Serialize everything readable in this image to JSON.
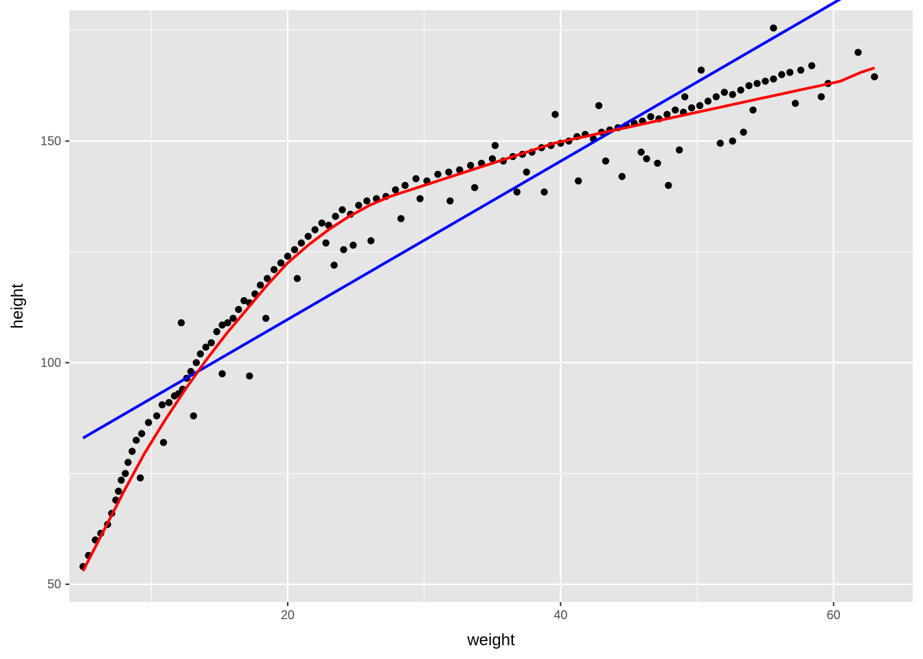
{
  "chart_data": {
    "type": "scatter",
    "title": "",
    "xlabel": "weight",
    "ylabel": "height",
    "xlim": [
      4.0,
      65.8
    ],
    "ylim": [
      46.0,
      179.5
    ],
    "x_ticks": [
      20,
      40,
      60
    ],
    "y_ticks": [
      50,
      100,
      150
    ],
    "x_minor_ticks": [
      10,
      30,
      50
    ],
    "y_minor_ticks": [
      75,
      125,
      175
    ],
    "grid": true,
    "legend": "none",
    "colors": {
      "panel": "#e5e5e5",
      "grid": "#ffffff",
      "points": "#000000",
      "linear_fit": "#0000ff",
      "smooth_fit": "#ff0000",
      "tick_label": "#4d4d4d"
    },
    "series": [
      {
        "kind": "points",
        "x": [
          5.0,
          5.4,
          5.9,
          6.3,
          6.8,
          7.1,
          7.4,
          7.6,
          7.8,
          8.1,
          8.3,
          8.6,
          8.9,
          9.3,
          9.8,
          10.4,
          10.8,
          11.3,
          11.7,
          12.0,
          12.3,
          12.6,
          12.9,
          13.3,
          13.6,
          14.0,
          14.4,
          14.8,
          15.2,
          15.6,
          16.0,
          16.4,
          16.8,
          17.2,
          17.6,
          18.0,
          18.5,
          19.0,
          19.5,
          20.0,
          20.5,
          21.0,
          21.5,
          22.0,
          22.5,
          23.0,
          23.5,
          24.0,
          24.6,
          25.2,
          25.8,
          26.5,
          27.2,
          27.9,
          28.6,
          29.4,
          30.2,
          31.0,
          31.8,
          32.6,
          33.4,
          34.2,
          35.0,
          35.8,
          36.5,
          37.2,
          37.9,
          38.6,
          39.3,
          40.0,
          40.6,
          41.2,
          41.8,
          42.4,
          43.0,
          43.6,
          44.2,
          44.8,
          45.4,
          46.0,
          46.6,
          47.2,
          47.8,
          48.4,
          49.0,
          49.6,
          50.2,
          50.8,
          51.4,
          52.0,
          52.6,
          53.2,
          53.8,
          54.4,
          55.0,
          55.6,
          56.2,
          56.8,
          57.6,
          58.4,
          59.6,
          61.8,
          63.0,
          12.2,
          17.2,
          15.2,
          23.4,
          50.3,
          55.6,
          49.1,
          31.9,
          28.3,
          22.8,
          24.8,
          36.8,
          38.8,
          41.3,
          44.5,
          47.9,
          52.6,
          13.1,
          9.2,
          10.9,
          18.4,
          20.7,
          26.1,
          33.7,
          46.3,
          48.7,
          54.1,
          57.2,
          59.1,
          42.8,
          37.5,
          35.2,
          45.9,
          51.7,
          53.4,
          47.1,
          43.3,
          39.6,
          29.7,
          24.1
        ],
        "y": [
          54.0,
          56.5,
          60.0,
          61.5,
          63.5,
          66.0,
          69.0,
          71.0,
          73.5,
          75.0,
          77.5,
          80.0,
          82.5,
          84.0,
          86.5,
          88.0,
          90.5,
          91.0,
          92.5,
          93.0,
          94.0,
          96.5,
          98.0,
          100.0,
          102.0,
          103.5,
          104.5,
          107.0,
          108.5,
          109.0,
          110.0,
          112.0,
          114.0,
          113.5,
          115.5,
          117.5,
          119.0,
          121.0,
          122.5,
          124.0,
          125.5,
          127.0,
          128.5,
          130.0,
          131.5,
          131.0,
          133.0,
          134.5,
          133.5,
          135.5,
          136.5,
          137.0,
          137.5,
          139.0,
          140.0,
          141.5,
          141.0,
          142.5,
          143.0,
          143.5,
          144.5,
          145.0,
          146.0,
          145.5,
          146.5,
          147.0,
          147.5,
          148.5,
          149.0,
          149.5,
          150.0,
          151.0,
          151.5,
          150.5,
          152.0,
          152.5,
          153.0,
          153.5,
          154.0,
          154.5,
          155.5,
          155.0,
          156.0,
          157.0,
          156.5,
          157.5,
          158.0,
          159.0,
          160.0,
          161.0,
          160.5,
          161.5,
          162.5,
          163.0,
          163.5,
          164.0,
          165.0,
          165.5,
          166.0,
          167.0,
          163.0,
          170.0,
          164.5,
          109.0,
          97.0,
          97.5,
          122.0,
          166.0,
          175.5,
          160.0,
          136.5,
          132.5,
          127.0,
          126.5,
          138.5,
          138.5,
          141.0,
          142.0,
          140.0,
          150.0,
          88.0,
          74.0,
          82.0,
          110.0,
          119.0,
          127.5,
          139.5,
          146.0,
          148.0,
          157.0,
          158.5,
          160.0,
          158.0,
          143.0,
          149.0,
          147.5,
          149.5,
          152.0,
          145.0,
          145.5,
          156.0,
          137.0,
          125.5
        ]
      },
      {
        "kind": "line",
        "method": "linear",
        "x": [
          5.0,
          63.0
        ],
        "y": [
          83.0,
          186.5
        ]
      },
      {
        "kind": "line",
        "method": "smooth",
        "x": [
          5.0,
          6.5,
          8.0,
          9.5,
          11.0,
          12.5,
          14.0,
          15.5,
          17.0,
          18.5,
          20.0,
          21.5,
          23.0,
          24.5,
          26.0,
          27.5,
          29.0,
          30.5,
          32.0,
          33.5,
          35.0,
          36.5,
          38.0,
          39.5,
          41.0,
          42.5,
          44.0,
          45.5,
          47.0,
          48.5,
          50.0,
          51.5,
          53.0,
          54.5,
          56.0,
          57.5,
          59.0,
          60.5,
          62.0,
          63.0
        ],
        "y": [
          53.0,
          62.0,
          71.0,
          79.5,
          87.0,
          94.0,
          100.5,
          106.5,
          112.0,
          117.5,
          122.5,
          126.5,
          130.0,
          133.0,
          135.5,
          137.5,
          139.0,
          140.5,
          142.0,
          143.5,
          145.0,
          146.5,
          148.0,
          149.5,
          150.5,
          151.5,
          152.5,
          153.5,
          154.5,
          155.5,
          156.5,
          157.5,
          158.5,
          159.5,
          160.5,
          161.5,
          162.5,
          163.5,
          165.5,
          166.5
        ]
      }
    ]
  }
}
